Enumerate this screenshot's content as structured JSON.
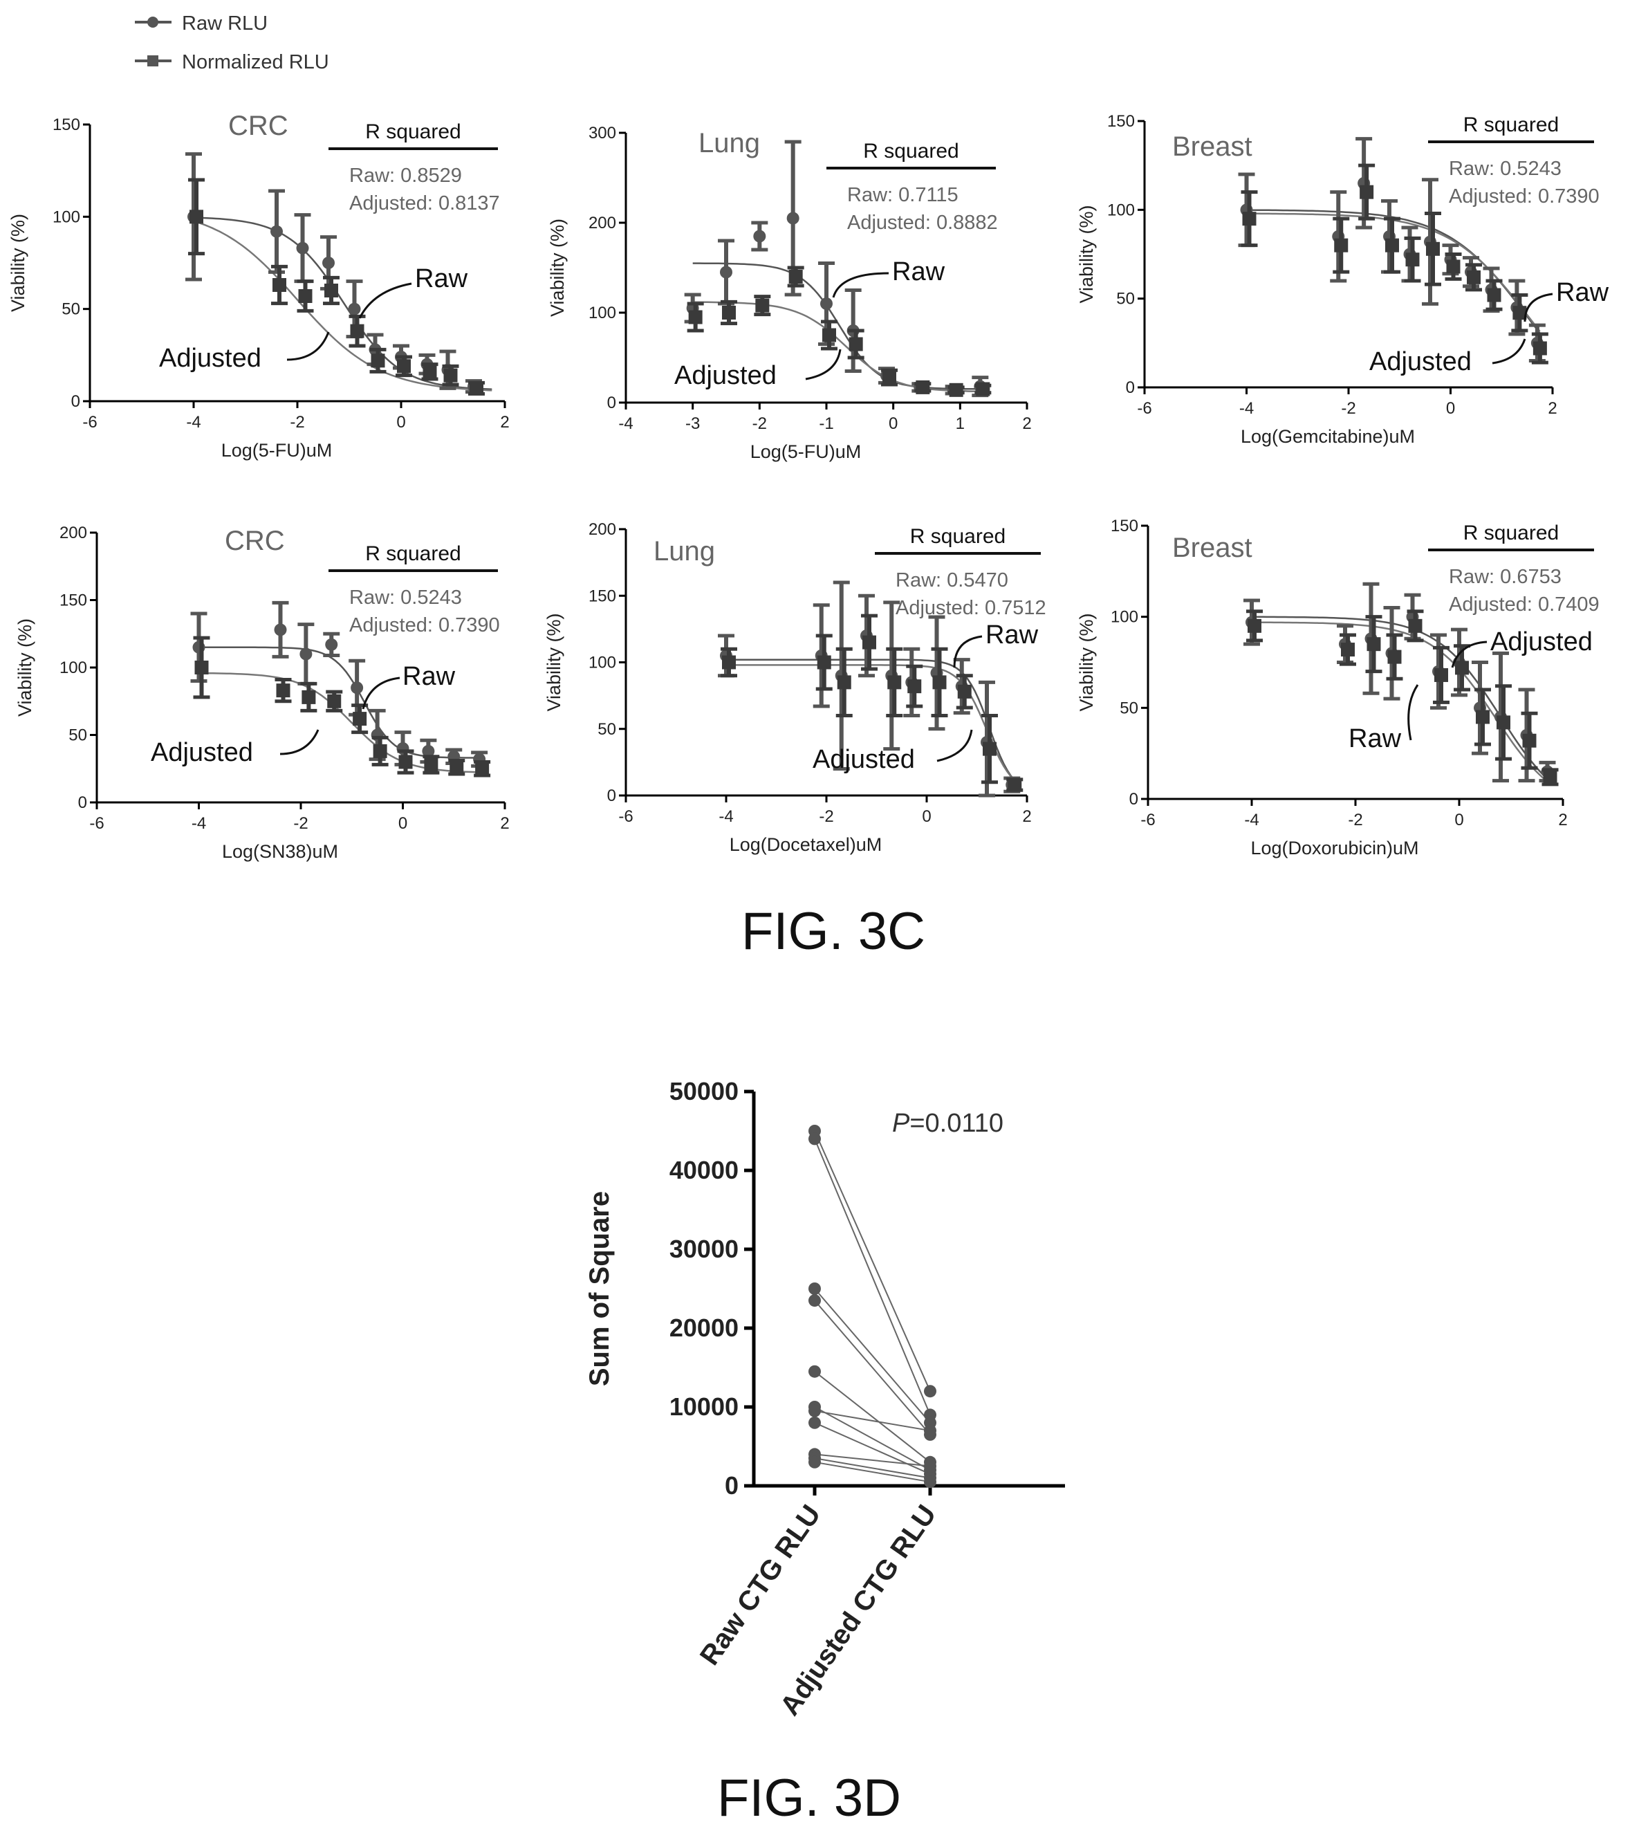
{
  "legend": {
    "raw_label": "Raw RLU",
    "norm_label": "Normalized RLU"
  },
  "fig3c_caption": "FIG. 3C",
  "fig3d_caption": "FIG. 3D",
  "colors": {
    "raw": "#555555",
    "norm": "#3a3a3a",
    "axis": "#000000",
    "annot_text": "#666666"
  },
  "chart_data": [
    {
      "type": "line",
      "panel": "3C-1",
      "title": "CRC",
      "xlabel": "Log(5-FU)uM",
      "ylabel": "Viability (%)",
      "xlim": [
        -6,
        2
      ],
      "xticks": [
        -6,
        -4,
        -2,
        0,
        2
      ],
      "ylim": [
        0,
        150
      ],
      "yticks": [
        0,
        50,
        100,
        150
      ],
      "r_squared": {
        "header": "R squared",
        "raw": "Raw: 0.8529",
        "adjusted": "Adjusted: 0.8137"
      },
      "callouts": {
        "raw": "Raw",
        "adjusted": "Adjusted"
      },
      "series": [
        {
          "name": "Raw RLU",
          "points": [
            [
              -4,
              100,
              34
            ],
            [
              -2.4,
              92,
              22
            ],
            [
              -1.9,
              83,
              18
            ],
            [
              -1.4,
              75,
              14
            ],
            [
              -0.9,
              50,
              15
            ],
            [
              -0.5,
              28,
              8
            ],
            [
              0,
              24,
              6
            ],
            [
              0.5,
              20,
              5
            ],
            [
              0.9,
              17,
              10
            ],
            [
              1.4,
              8,
              3
            ]
          ],
          "fit": {
            "top": 100,
            "bottom": 6,
            "logic50": -1.1,
            "hill": 0.8
          }
        },
        {
          "name": "Normalized RLU",
          "points": [
            [
              -4,
              100,
              20
            ],
            [
              -2.4,
              63,
              10
            ],
            [
              -1.9,
              57,
              8
            ],
            [
              -1.4,
              60,
              7
            ],
            [
              -0.9,
              38,
              8
            ],
            [
              -0.5,
              22,
              6
            ],
            [
              0,
              19,
              5
            ],
            [
              0.5,
              16,
              4
            ],
            [
              0.9,
              14,
              5
            ],
            [
              1.4,
              7,
              3
            ]
          ],
          "fit": {
            "top": 105,
            "bottom": 5,
            "logic50": -2.0,
            "hill": 0.55
          }
        }
      ]
    },
    {
      "type": "line",
      "panel": "3C-2",
      "title": "Lung",
      "xlabel": "Log(5-FU)uM",
      "ylabel": "Viability (%)",
      "xlim": [
        -4,
        2
      ],
      "xticks": [
        -4,
        -3,
        -2,
        -1,
        0,
        1,
        2
      ],
      "ylim": [
        0,
        300
      ],
      "yticks": [
        0,
        100,
        200,
        300
      ],
      "r_squared": {
        "header": "R squared",
        "raw": "Raw: 0.7115",
        "adjusted": "Adjusted: 0.8882"
      },
      "callouts": {
        "raw": "Raw",
        "adjusted": "Adjusted"
      },
      "series": [
        {
          "name": "Raw RLU",
          "points": [
            [
              -3,
              105,
              15
            ],
            [
              -2.5,
              145,
              35
            ],
            [
              -2,
              185,
              15
            ],
            [
              -1.5,
              205,
              85
            ],
            [
              -1,
              110,
              45
            ],
            [
              -0.6,
              80,
              45
            ],
            [
              -0.1,
              30,
              8
            ],
            [
              0.4,
              17,
              4
            ],
            [
              0.9,
              14,
              4
            ],
            [
              1.3,
              18,
              10
            ]
          ],
          "fit": {
            "top": 155,
            "bottom": 15,
            "logic50": -0.8,
            "hill": 1.5
          }
        },
        {
          "name": "Normalized RLU",
          "points": [
            [
              -3,
              95,
              15
            ],
            [
              -2.5,
              100,
              12
            ],
            [
              -2,
              108,
              10
            ],
            [
              -1.5,
              140,
              10
            ],
            [
              -1,
              75,
              15
            ],
            [
              -0.6,
              65,
              15
            ],
            [
              -0.1,
              28,
              8
            ],
            [
              0.4,
              17,
              4
            ],
            [
              0.9,
              14,
              3
            ],
            [
              1.3,
              15,
              4
            ]
          ],
          "fit": {
            "top": 112,
            "bottom": 12,
            "logic50": -0.7,
            "hill": 1.2
          }
        }
      ]
    },
    {
      "type": "line",
      "panel": "3C-3",
      "title": "Breast",
      "xlabel": "Log(Gemcitabine)uM",
      "ylabel": "Viability (%)",
      "xlim": [
        -6,
        2
      ],
      "xticks": [
        -6,
        -4,
        -2,
        0,
        2
      ],
      "ylim": [
        0,
        150
      ],
      "yticks": [
        0,
        50,
        100,
        150
      ],
      "r_squared": {
        "header": "R squared",
        "raw": "Raw: 0.5243",
        "adjusted": "Adjusted: 0.7390"
      },
      "callouts": {
        "raw": "Raw",
        "adjusted": "Adjusted"
      },
      "series": [
        {
          "name": "Raw RLU",
          "points": [
            [
              -4,
              100,
              20
            ],
            [
              -2.2,
              85,
              25
            ],
            [
              -1.7,
              115,
              25
            ],
            [
              -1.2,
              85,
              20
            ],
            [
              -0.8,
              75,
              15
            ],
            [
              -0.4,
              82,
              35
            ],
            [
              0,
              72,
              8
            ],
            [
              0.4,
              65,
              8
            ],
            [
              0.8,
              55,
              12
            ],
            [
              1.3,
              45,
              15
            ],
            [
              1.7,
              25,
              10
            ]
          ],
          "fit": {
            "top": 100,
            "bottom": -20,
            "logic50": 1.5,
            "hill": 0.55
          }
        },
        {
          "name": "Normalized RLU",
          "points": [
            [
              -4,
              95,
              15
            ],
            [
              -2.2,
              80,
              15
            ],
            [
              -1.7,
              110,
              15
            ],
            [
              -1.2,
              80,
              15
            ],
            [
              -0.8,
              72,
              12
            ],
            [
              -0.4,
              78,
              20
            ],
            [
              0,
              68,
              7
            ],
            [
              0.4,
              62,
              7
            ],
            [
              0.8,
              52,
              8
            ],
            [
              1.3,
              42,
              10
            ],
            [
              1.7,
              22,
              8
            ]
          ],
          "fit": {
            "top": 98,
            "bottom": -20,
            "logic50": 1.55,
            "hill": 0.55
          }
        }
      ]
    },
    {
      "type": "line",
      "panel": "3C-4",
      "title": "CRC",
      "xlabel": "Log(SN38)uM",
      "ylabel": "Viability (%)",
      "xlim": [
        -6,
        2
      ],
      "xticks": [
        -6,
        -4,
        -2,
        0,
        2
      ],
      "ylim": [
        0,
        200
      ],
      "yticks": [
        0,
        50,
        100,
        150,
        200
      ],
      "r_squared": {
        "header": "R squared",
        "raw": "Raw: 0.5243",
        "adjusted": "Adjusted: 0.7390"
      },
      "callouts": {
        "raw": "Raw",
        "adjusted": "Adjusted"
      },
      "series": [
        {
          "name": "Raw RLU",
          "points": [
            [
              -4,
              115,
              25
            ],
            [
              -2.4,
              128,
              20
            ],
            [
              -1.9,
              110,
              22
            ],
            [
              -1.4,
              117,
              8
            ],
            [
              -0.9,
              85,
              20
            ],
            [
              -0.5,
              50,
              18
            ],
            [
              0,
              40,
              12
            ],
            [
              0.5,
              38,
              8
            ],
            [
              1,
              34,
              5
            ],
            [
              1.5,
              32,
              5
            ]
          ],
          "fit": {
            "top": 115,
            "bottom": 33,
            "logic50": -0.75,
            "hill": 1.5
          }
        },
        {
          "name": "Normalized RLU",
          "points": [
            [
              -4,
              100,
              22
            ],
            [
              -2.4,
              83,
              8
            ],
            [
              -1.9,
              78,
              10
            ],
            [
              -1.4,
              75,
              7
            ],
            [
              -0.9,
              62,
              10
            ],
            [
              -0.5,
              38,
              10
            ],
            [
              0,
              30,
              8
            ],
            [
              0.5,
              28,
              6
            ],
            [
              1,
              26,
              5
            ],
            [
              1.5,
              25,
              5
            ]
          ],
          "fit": {
            "top": 96,
            "bottom": 22,
            "logic50": -1.0,
            "hill": 0.9
          }
        }
      ]
    },
    {
      "type": "line",
      "panel": "3C-5",
      "title": "Lung",
      "xlabel": "Log(Docetaxel)uM",
      "ylabel": "Viability (%)",
      "xlim": [
        -6,
        2
      ],
      "xticks": [
        -6,
        -4,
        -2,
        0,
        2
      ],
      "ylim": [
        0,
        200
      ],
      "yticks": [
        0,
        50,
        100,
        150,
        200
      ],
      "r_squared": {
        "header": "R squared",
        "raw": "Raw: 0.5470",
        "adjusted": "Adjusted: 0.7512"
      },
      "callouts": {
        "raw": "Raw",
        "adjusted": "Adjusted"
      },
      "series": [
        {
          "name": "Raw RLU",
          "points": [
            [
              -4,
              105,
              15
            ],
            [
              -2.1,
              105,
              38
            ],
            [
              -1.7,
              90,
              70
            ],
            [
              -1.2,
              120,
              30
            ],
            [
              -0.7,
              90,
              55
            ],
            [
              -0.3,
              85,
              25
            ],
            [
              0.2,
              92,
              42
            ],
            [
              0.7,
              82,
              20
            ],
            [
              1.2,
              40,
              45
            ],
            [
              1.7,
              8,
              5
            ]
          ],
          "fit": {
            "top": 102,
            "bottom": 0,
            "logic50": 1.25,
            "hill": 1.8
          }
        },
        {
          "name": "Normalized RLU",
          "points": [
            [
              -4,
              100,
              10
            ],
            [
              -2.1,
              100,
              20
            ],
            [
              -1.7,
              85,
              25
            ],
            [
              -1.2,
              115,
              20
            ],
            [
              -0.7,
              85,
              25
            ],
            [
              -0.3,
              82,
              15
            ],
            [
              0.2,
              85,
              25
            ],
            [
              0.7,
              78,
              12
            ],
            [
              1.2,
              35,
              25
            ],
            [
              1.7,
              8,
              4
            ]
          ],
          "fit": {
            "top": 98,
            "bottom": 0,
            "logic50": 1.2,
            "hill": 1.6
          }
        }
      ]
    },
    {
      "type": "line",
      "panel": "3C-6",
      "title": "Breast",
      "xlabel": "Log(Doxorubicin)uM",
      "ylabel": "Viability (%)",
      "xlim": [
        -6,
        2
      ],
      "xticks": [
        -6,
        -4,
        -2,
        0,
        2
      ],
      "ylim": [
        0,
        150
      ],
      "yticks": [
        0,
        50,
        100,
        150
      ],
      "r_squared": {
        "header": "R squared",
        "raw": "Raw: 0.6753",
        "adjusted": "Adjusted: 0.7409"
      },
      "callouts": {
        "raw": "Raw",
        "adjusted": "Adjusted"
      },
      "series": [
        {
          "name": "Raw RLU",
          "points": [
            [
              -4,
              97,
              12
            ],
            [
              -2.2,
              85,
              10
            ],
            [
              -1.7,
              88,
              30
            ],
            [
              -1.3,
              80,
              25
            ],
            [
              -0.9,
              100,
              12
            ],
            [
              -0.4,
              70,
              20
            ],
            [
              0,
              75,
              18
            ],
            [
              0.4,
              50,
              25
            ],
            [
              0.8,
              45,
              35
            ],
            [
              1.3,
              35,
              25
            ],
            [
              1.7,
              15,
              5
            ]
          ],
          "fit": {
            "top": 100,
            "bottom": -10,
            "logic50": 0.8,
            "hill": 0.7
          }
        },
        {
          "name": "Normalized RLU",
          "points": [
            [
              -4,
              95,
              8
            ],
            [
              -2.2,
              82,
              8
            ],
            [
              -1.7,
              85,
              15
            ],
            [
              -1.3,
              78,
              12
            ],
            [
              -0.9,
              95,
              8
            ],
            [
              -0.4,
              68,
              15
            ],
            [
              0,
              72,
              12
            ],
            [
              0.4,
              45,
              15
            ],
            [
              0.8,
              42,
              20
            ],
            [
              1.3,
              32,
              15
            ],
            [
              1.7,
              12,
              4
            ]
          ],
          "fit": {
            "top": 97,
            "bottom": -8,
            "logic50": 0.7,
            "hill": 0.7
          }
        }
      ]
    },
    {
      "type": "line",
      "panel": "3D",
      "title": "",
      "ylabel": "Sum of Square",
      "xlabel": "",
      "categories": [
        "Raw CTG RLU",
        "Adjusted CTG RLU"
      ],
      "ylim": [
        0,
        50000
      ],
      "yticks": [
        0,
        10000,
        20000,
        30000,
        40000,
        50000
      ],
      "annotation": {
        "italic": "P",
        "rest": "=0.0110"
      },
      "pairs": [
        [
          45000,
          12000
        ],
        [
          44000,
          9000
        ],
        [
          25000,
          8000
        ],
        [
          23500,
          6500
        ],
        [
          14500,
          3000
        ],
        [
          10000,
          2000
        ],
        [
          9500,
          7000
        ],
        [
          8000,
          1500
        ],
        [
          4000,
          2500
        ],
        [
          3500,
          1000
        ],
        [
          3000,
          500
        ]
      ]
    }
  ]
}
